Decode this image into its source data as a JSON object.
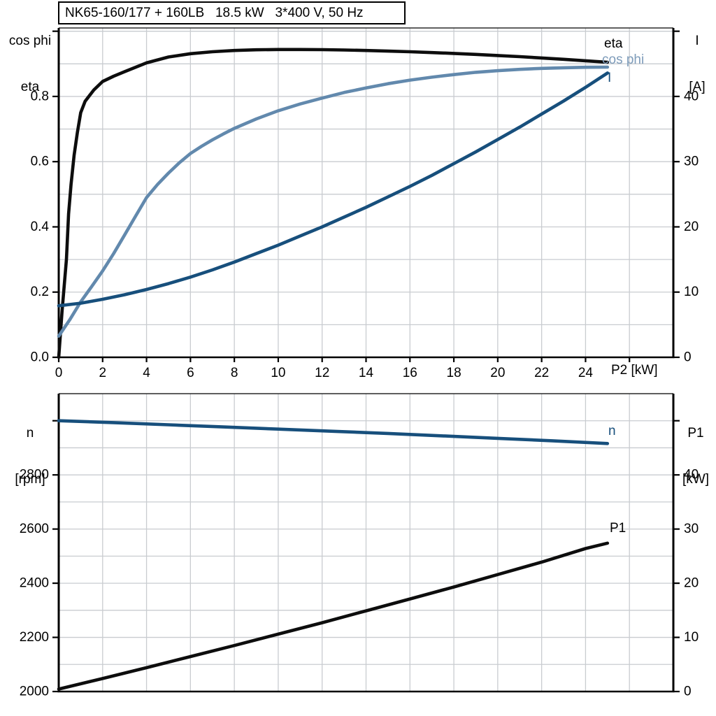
{
  "colors": {
    "curve_black": "#0d0d0d",
    "curve_light_blue": "#6289ad",
    "curve_dark_blue": "#174f7c",
    "label_light_blue": "#7e9cba",
    "grid": "#c9ccd0",
    "axis": "#000000"
  },
  "chart_data": [
    {
      "type": "line",
      "title": "NK65-160/177 + 160LB   18.5 kW   3*400 V, 50 Hz",
      "x_axis": {
        "label": "P2 [kW]",
        "min": 0,
        "max": 28,
        "grid_step": 2,
        "tick_values": [
          0,
          2,
          4,
          6,
          8,
          10,
          12,
          14,
          16,
          18,
          20,
          22,
          24,
          26
        ],
        "tick_labels": [
          "0",
          "2",
          "4",
          "6",
          "8",
          "10",
          "12",
          "14",
          "16",
          "18",
          "20",
          "22",
          "24",
          ""
        ]
      },
      "left_axis": {
        "label_lines": [
          "cos phi",
          "eta"
        ],
        "min": 0,
        "max": 1.01,
        "grid_step": 0.1,
        "tick_values": [
          0,
          0.2,
          0.4,
          0.6,
          0.8,
          1.0
        ],
        "tick_labels": [
          "0.0",
          "0.2",
          "0.4",
          "0.6",
          "0.8",
          ""
        ]
      },
      "right_axis": {
        "label_lines": [
          "I",
          "[A]"
        ],
        "min": 0,
        "max": 50.5,
        "grid_step": 5,
        "tick_values": [
          0,
          10,
          20,
          30,
          40,
          50
        ],
        "tick_labels": [
          "0",
          "10",
          "20",
          "30",
          "40",
          ""
        ]
      },
      "series": [
        {
          "name": "eta",
          "label": "eta",
          "axis": "left",
          "color": "#0d0d0d",
          "points": [
            [
              0,
              0
            ],
            [
              0.15,
              0.14
            ],
            [
              0.35,
              0.3
            ],
            [
              0.45,
              0.44
            ],
            [
              0.56,
              0.53
            ],
            [
              0.7,
              0.62
            ],
            [
              0.85,
              0.69
            ],
            [
              1.0,
              0.75
            ],
            [
              1.2,
              0.785
            ],
            [
              1.6,
              0.82
            ],
            [
              2,
              0.846
            ],
            [
              2.5,
              0.862
            ],
            [
              3,
              0.876
            ],
            [
              4,
              0.903
            ],
            [
              5,
              0.921
            ],
            [
              6,
              0.931
            ],
            [
              7,
              0.937
            ],
            [
              8,
              0.941
            ],
            [
              9,
              0.943
            ],
            [
              10,
              0.944
            ],
            [
              11,
              0.944
            ],
            [
              12,
              0.9435
            ],
            [
              13,
              0.9425
            ],
            [
              14,
              0.941
            ],
            [
              15,
              0.939
            ],
            [
              16,
              0.937
            ],
            [
              17,
              0.9345
            ],
            [
              18,
              0.932
            ],
            [
              19,
              0.929
            ],
            [
              20,
              0.9255
            ],
            [
              21,
              0.922
            ],
            [
              22,
              0.918
            ],
            [
              23,
              0.914
            ],
            [
              24,
              0.9095
            ],
            [
              25,
              0.905
            ]
          ]
        },
        {
          "name": "cos phi",
          "label": "cos phi",
          "axis": "left",
          "color": "#6289ad",
          "points": [
            [
              0,
              0.065
            ],
            [
              0.5,
              0.115
            ],
            [
              1,
              0.17
            ],
            [
              1.5,
              0.217
            ],
            [
              2,
              0.265
            ],
            [
              2.5,
              0.318
            ],
            [
              3,
              0.375
            ],
            [
              3.5,
              0.433
            ],
            [
              4,
              0.49
            ],
            [
              4.5,
              0.53
            ],
            [
              5,
              0.565
            ],
            [
              5.5,
              0.597
            ],
            [
              6,
              0.625
            ],
            [
              6.5,
              0.647
            ],
            [
              7,
              0.667
            ],
            [
              7.5,
              0.685
            ],
            [
              8,
              0.702
            ],
            [
              9,
              0.731
            ],
            [
              10,
              0.756
            ],
            [
              11,
              0.777
            ],
            [
              12,
              0.795
            ],
            [
              13,
              0.812
            ],
            [
              14,
              0.826
            ],
            [
              15,
              0.839
            ],
            [
              16,
              0.85
            ],
            [
              17,
              0.859
            ],
            [
              18,
              0.867
            ],
            [
              19,
              0.874
            ],
            [
              20,
              0.879
            ],
            [
              21,
              0.883
            ],
            [
              22,
              0.886
            ],
            [
              23,
              0.888
            ],
            [
              24,
              0.8895
            ],
            [
              25,
              0.89
            ]
          ]
        },
        {
          "name": "I",
          "label": "I",
          "axis": "right",
          "color": "#174f7c",
          "points": [
            [
              0,
              7.9
            ],
            [
              1,
              8.3
            ],
            [
              2,
              8.9
            ],
            [
              3,
              9.6
            ],
            [
              4,
              10.4
            ],
            [
              5,
              11.3
            ],
            [
              6,
              12.3
            ],
            [
              7,
              13.4
            ],
            [
              8,
              14.6
            ],
            [
              9,
              15.9
            ],
            [
              10,
              17.2
            ],
            [
              11,
              18.6
            ],
            [
              12,
              20.0
            ],
            [
              13,
              21.5
            ],
            [
              14,
              23.0
            ],
            [
              15,
              24.6
            ],
            [
              16,
              26.2
            ],
            [
              17,
              27.9
            ],
            [
              18,
              29.7
            ],
            [
              19,
              31.5
            ],
            [
              20,
              33.4
            ],
            [
              21,
              35.3
            ],
            [
              22,
              37.3
            ],
            [
              23,
              39.3
            ],
            [
              24,
              41.4
            ],
            [
              25,
              43.6
            ]
          ]
        }
      ]
    },
    {
      "type": "line",
      "x_axis": {
        "label": "",
        "min": 0,
        "max": 28,
        "grid_step": 2,
        "tick_values": [],
        "tick_labels": []
      },
      "left_axis": {
        "label_lines": [
          "n",
          "[rpm]"
        ],
        "min": 2000,
        "max": 3100,
        "grid_step": 100,
        "tick_values": [
          2000,
          2200,
          2400,
          2600,
          2800,
          3000
        ],
        "tick_labels": [
          "2000",
          "2200",
          "2400",
          "2600",
          "2800",
          ""
        ]
      },
      "right_axis": {
        "label_lines": [
          "P1",
          "[kW]"
        ],
        "min": 0,
        "max": 55,
        "grid_step": 5,
        "tick_values": [
          0,
          10,
          20,
          30,
          40,
          50
        ],
        "tick_labels": [
          "0",
          "10",
          "20",
          "30",
          "40",
          ""
        ]
      },
      "series": [
        {
          "name": "n",
          "label": "n",
          "axis": "left",
          "color": "#174f7c",
          "points": [
            [
              0,
              3000
            ],
            [
              2.5,
              2993
            ],
            [
              5,
              2985
            ],
            [
              7.5,
              2977
            ],
            [
              10,
              2969
            ],
            [
              12.5,
              2961
            ],
            [
              15,
              2953
            ],
            [
              17.5,
              2944
            ],
            [
              20,
              2935
            ],
            [
              22.5,
              2926
            ],
            [
              25,
              2916
            ]
          ]
        },
        {
          "name": "P1",
          "label": "P1",
          "axis": "right",
          "color": "#0d0d0d",
          "points": [
            [
              0,
              0.45
            ],
            [
              2,
              2.4
            ],
            [
              4,
              4.4
            ],
            [
              6,
              6.45
            ],
            [
              8,
              8.5
            ],
            [
              10,
              10.6
            ],
            [
              12,
              12.7
            ],
            [
              14,
              14.9
            ],
            [
              16,
              17.1
            ],
            [
              18,
              19.3
            ],
            [
              20,
              21.6
            ],
            [
              22,
              23.9
            ],
            [
              24,
              26.4
            ],
            [
              25,
              27.4
            ]
          ]
        }
      ]
    }
  ]
}
